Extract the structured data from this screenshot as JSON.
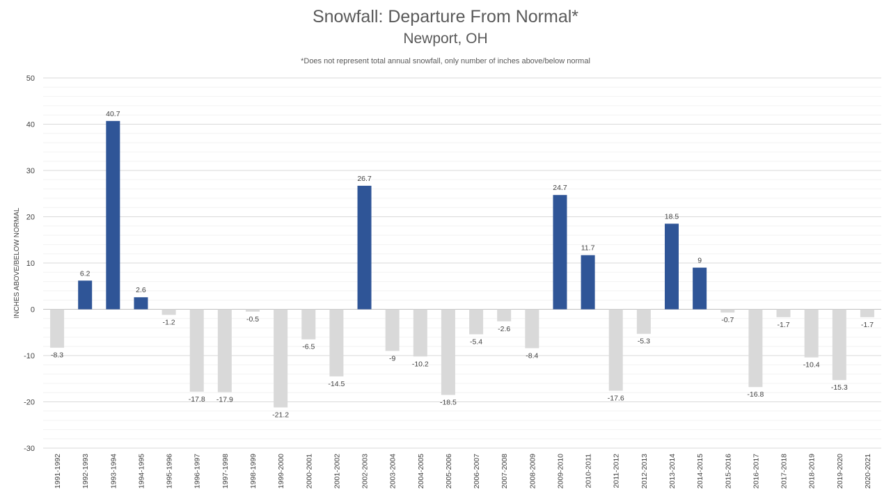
{
  "chart_data": {
    "type": "bar",
    "title": "Snowfall: Departure From Normal*",
    "subtitle": "Newport, OH",
    "note": "*Does not represent  total annual snowfall, only number of inches above/below normal",
    "ylabel": "INCHES ABOVE/BELOW NORMAL",
    "xlabel": "",
    "ylim": [
      -30,
      50
    ],
    "yticks": [
      -30,
      -20,
      -10,
      0,
      10,
      20,
      30,
      40,
      50
    ],
    "grid": true,
    "legend": "none",
    "categories": [
      "1991-1992",
      "1992-1993",
      "1993-1994",
      "1994-1995",
      "1995-1996",
      "1996-1997",
      "1997-1998",
      "1998-1999",
      "1999-2000",
      "2000-2001",
      "2001-2002",
      "2002-2003",
      "2003-2004",
      "2004-2005",
      "2005-2006",
      "2006-2007",
      "2007-2008",
      "2008-2009",
      "2009-2010",
      "2010-2011",
      "2011-2012",
      "2012-2013",
      "2013-2014",
      "2014-2015",
      "2015-2016",
      "2016-2017",
      "2017-2018",
      "2018-2019",
      "2019-2020",
      "2020-2021"
    ],
    "values": [
      -8.3,
      6.2,
      40.7,
      2.6,
      -1.2,
      -17.8,
      -17.9,
      -0.5,
      -21.2,
      -6.5,
      -14.5,
      26.7,
      -9,
      -10.2,
      -18.5,
      -5.4,
      -2.6,
      -8.4,
      24.7,
      11.7,
      -17.6,
      -5.3,
      18.5,
      9,
      -0.7,
      -16.8,
      -1.7,
      -10.4,
      -15.3,
      -1.7
    ],
    "colors": {
      "positive": "#2f5597",
      "negative": "#d9d9d9"
    }
  }
}
